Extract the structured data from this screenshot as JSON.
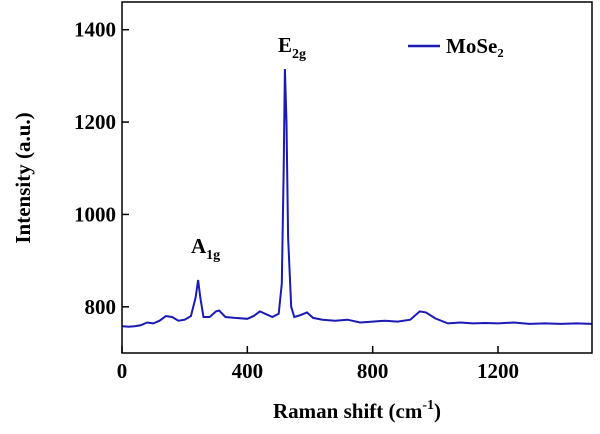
{
  "chart_data": {
    "type": "line",
    "x_label": {
      "text": "Raman shift (cm",
      "sup": "-1",
      "tail": ")"
    },
    "y_label": "Intensity (a.u.)",
    "annotations": [
      {
        "text": "A",
        "sub": "1g"
      },
      {
        "text": "E",
        "sub": "2g"
      }
    ],
    "x": [
      0,
      20,
      40,
      60,
      80,
      100,
      120,
      140,
      160,
      180,
      200,
      220,
      235,
      243,
      250,
      260,
      280,
      300,
      310,
      330,
      360,
      400,
      420,
      440,
      460,
      480,
      500,
      510,
      516,
      520,
      525,
      530,
      540,
      550,
      570,
      590,
      610,
      640,
      680,
      720,
      760,
      800,
      840,
      880,
      920,
      950,
      970,
      1000,
      1040,
      1080,
      1120,
      1160,
      1200,
      1250,
      1300,
      1350,
      1400,
      1450,
      1500
    ],
    "series": [
      {
        "name": "MoSe₂",
        "color": "#1a1ab4",
        "values": [
          758,
          757,
          758,
          760,
          766,
          764,
          770,
          780,
          778,
          770,
          772,
          780,
          820,
          858,
          820,
          778,
          778,
          790,
          792,
          778,
          776,
          774,
          780,
          790,
          784,
          778,
          785,
          850,
          1100,
          1315,
          1200,
          950,
          800,
          778,
          782,
          788,
          776,
          772,
          770,
          772,
          766,
          768,
          770,
          768,
          772,
          790,
          788,
          775,
          764,
          766,
          764,
          765,
          764,
          766,
          763,
          764,
          763,
          764,
          763
        ]
      }
    ],
    "xlim": [
      0,
      1500
    ],
    "ylim": [
      700,
      1460
    ],
    "xticks": [
      0,
      400,
      800,
      1200
    ],
    "yticks": [
      800,
      1000,
      1200,
      1400
    ],
    "legend": "upper right"
  }
}
